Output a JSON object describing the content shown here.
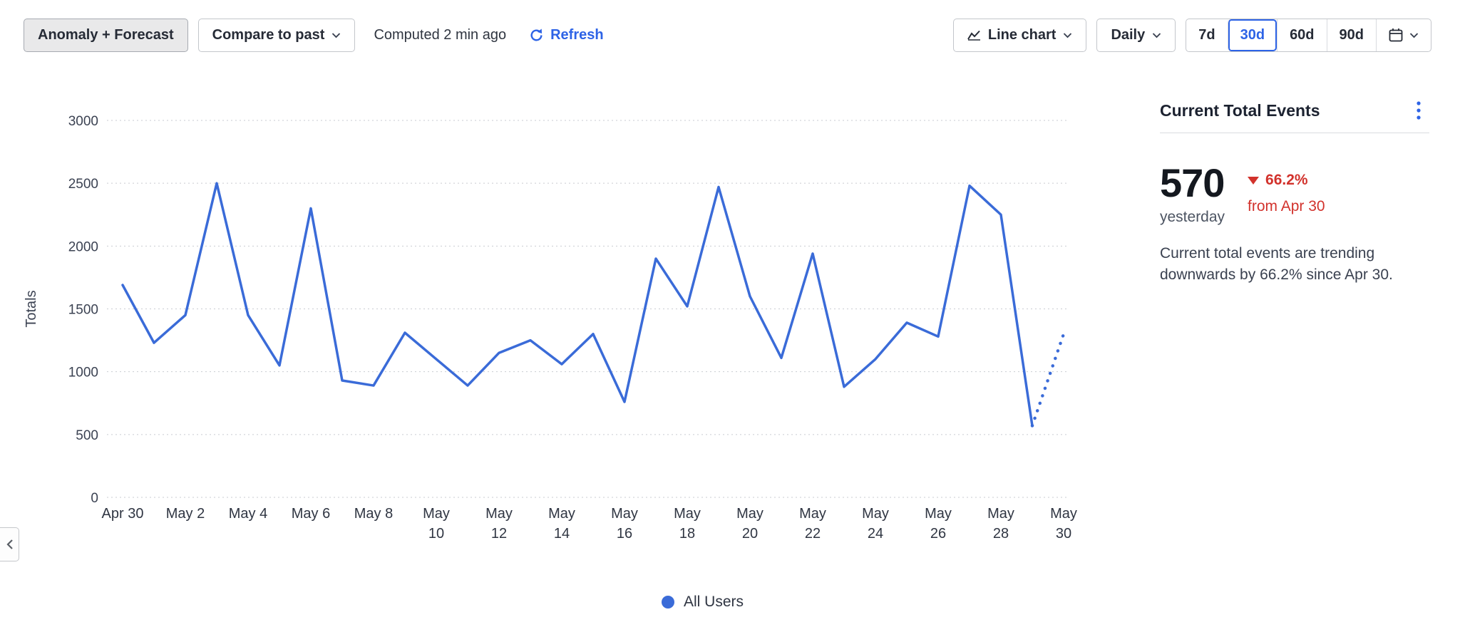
{
  "colors": {
    "accent_blue": "#2d63e6",
    "series_blue": "#3a6bd8",
    "negative_red": "#d2322c",
    "grid": "#c9cbd1"
  },
  "toolbar": {
    "anomaly_button": "Anomaly + Forecast",
    "compare_button": "Compare to past",
    "computed_text": "Computed 2 min ago",
    "refresh_label": "Refresh",
    "chart_type_label": "Line chart",
    "granularity_label": "Daily",
    "ranges": [
      "7d",
      "30d",
      "60d",
      "90d"
    ],
    "selected_range": "30d"
  },
  "chart_data": {
    "type": "line",
    "ylabel": "Totals",
    "ylim": [
      0,
      3000
    ],
    "yticks": [
      0,
      500,
      1000,
      1500,
      2000,
      2500,
      3000
    ],
    "xtick_interval": 2,
    "grid": true,
    "legend_position": "bottom-center",
    "x": [
      "Apr 30",
      "May 1",
      "May 2",
      "May 3",
      "May 4",
      "May 5",
      "May 6",
      "May 7",
      "May 8",
      "May 9",
      "May 10",
      "May 11",
      "May 12",
      "May 13",
      "May 14",
      "May 15",
      "May 16",
      "May 17",
      "May 18",
      "May 19",
      "May 20",
      "May 21",
      "May 22",
      "May 23",
      "May 24",
      "May 25",
      "May 26",
      "May 27",
      "May 28",
      "May 29",
      "May 30"
    ],
    "series": [
      {
        "name": "All Users",
        "color": "#3a6bd8",
        "values": [
          1690,
          1230,
          1450,
          2500,
          1450,
          1050,
          2300,
          930,
          890,
          1310,
          1100,
          890,
          1150,
          1250,
          1060,
          1300,
          760,
          1900,
          1520,
          2470,
          1600,
          1110,
          1940,
          880,
          1100,
          1390,
          1280,
          2480,
          2250,
          570,
          1300
        ],
        "forecast_from_index": 29
      }
    ]
  },
  "summary": {
    "title": "Current Total Events",
    "value": "570",
    "value_caption": "yesterday",
    "delta": "66.2%",
    "delta_direction": "down",
    "delta_caption": "from Apr 30",
    "description": "Current total events are trending downwards by 66.2% since Apr 30."
  },
  "icons": {
    "refresh": "circular-arrow",
    "chevron_down": "⌄",
    "chevron_left": "◀",
    "kebab": "⋮",
    "calendar": "calendar-grid",
    "line_chart": "zigzag-line",
    "legend_dot": "●",
    "delta_down": "▼"
  }
}
